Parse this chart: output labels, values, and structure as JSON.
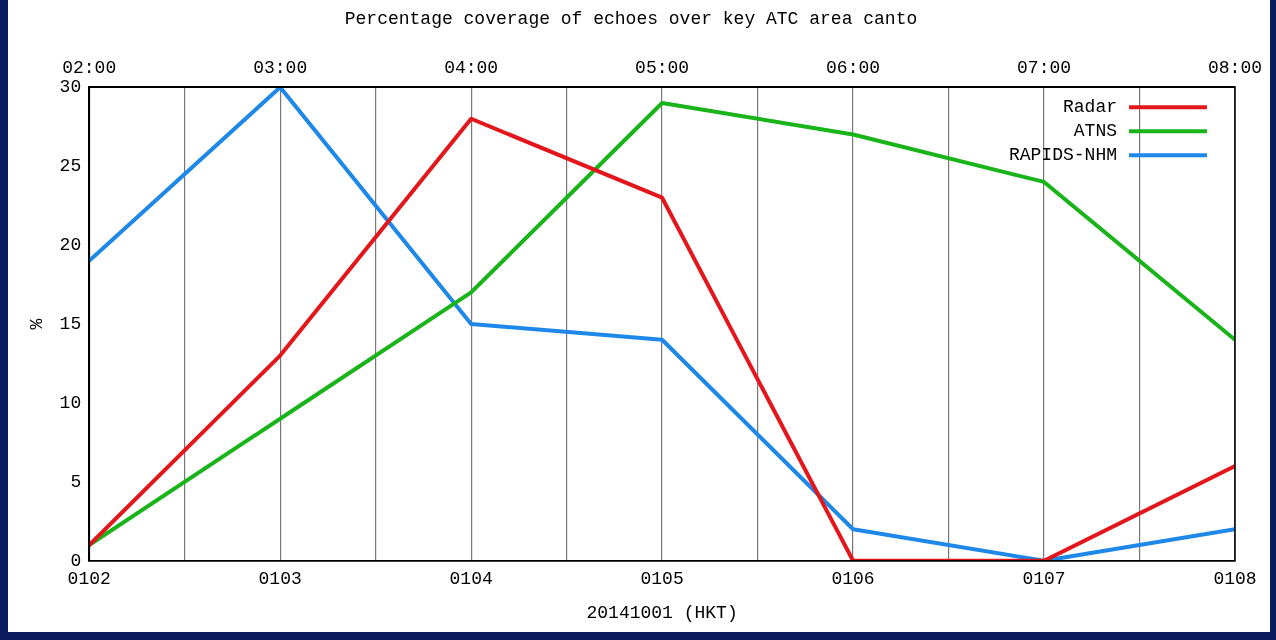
{
  "chart_data": {
    "type": "line",
    "title": "Percentage coverage of echoes over key ATC area canto",
    "xlabel": "20141001 (HKT)",
    "ylabel": "%",
    "categories": [
      "0102",
      "0103",
      "0104",
      "0105",
      "0106",
      "0107",
      "0108"
    ],
    "series": [
      {
        "name": "Radar",
        "color": "#e3161b",
        "values": [
          1,
          13,
          28,
          23,
          0,
          0,
          6
        ]
      },
      {
        "name": "ATNS",
        "color": "#19b31a",
        "values": [
          1,
          9,
          17,
          29,
          27,
          24,
          14
        ]
      },
      {
        "name": "RAPIDS-NHM",
        "color": "#1e88e8",
        "values": [
          19,
          30,
          15,
          14,
          2,
          0,
          2
        ]
      }
    ],
    "x2lim": [
      2,
      8
    ],
    "x2ticks": [
      {
        "value": 2,
        "label": "02:00"
      },
      {
        "value": 2.5,
        "label": null
      },
      {
        "value": 3,
        "label": "03:00"
      },
      {
        "value": 3.5,
        "label": null
      },
      {
        "value": 4,
        "label": "04:00"
      },
      {
        "value": 4.5,
        "label": null
      },
      {
        "value": 5,
        "label": "05:00"
      },
      {
        "value": 5.5,
        "label": null
      },
      {
        "value": 6,
        "label": "06:00"
      },
      {
        "value": 6.5,
        "label": null
      },
      {
        "value": 7,
        "label": "07:00"
      },
      {
        "value": 7.5,
        "label": null
      },
      {
        "value": 8,
        "label": "08:00"
      }
    ],
    "ylim": [
      0,
      30
    ],
    "yticks": [
      0,
      5,
      10,
      15,
      20,
      25,
      30
    ],
    "grid": "x",
    "legend": "top right",
    "marker": "none",
    "line_style": "solid"
  }
}
